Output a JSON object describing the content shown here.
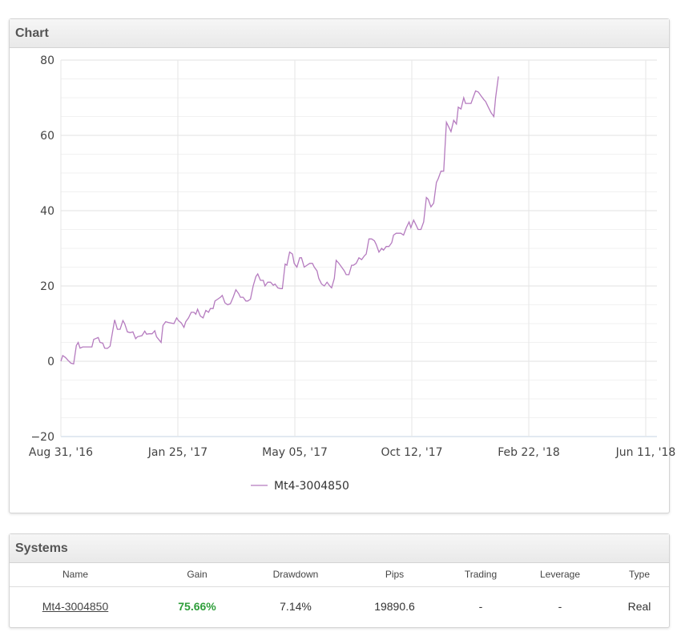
{
  "chart_panel": {
    "title": "Chart"
  },
  "chart_data": {
    "type": "line",
    "x_tick_labels": [
      "Aug 31, '16",
      "Jan 25, '17",
      "May 05, '17",
      "Oct 12, '17",
      "Feb 22, '18",
      "Jun 11, '18"
    ],
    "x_range": [
      "2016-08-31",
      "2018-06-16"
    ],
    "y_tick_labels": [
      "80",
      "60",
      "40",
      "20",
      "0",
      "−20"
    ],
    "ylim": [
      -20,
      80
    ],
    "grid": true,
    "legend_position": "bottom",
    "series": [
      {
        "name": "Mt4-3004850",
        "color": "#b57bbf",
        "points": [
          [
            "2016-08-31",
            0
          ],
          [
            "2016-09-02",
            1.5
          ],
          [
            "2016-09-05",
            1.0
          ],
          [
            "2016-09-08",
            0.2
          ],
          [
            "2016-09-11",
            -0.5
          ],
          [
            "2016-09-14",
            -0.7
          ],
          [
            "2016-09-17",
            4.2
          ],
          [
            "2016-09-19",
            5.0
          ],
          [
            "2016-09-21",
            3.5
          ],
          [
            "2016-09-24",
            3.8
          ],
          [
            "2016-09-30",
            3.8
          ],
          [
            "2016-10-04",
            3.8
          ],
          [
            "2016-10-06",
            5.8
          ],
          [
            "2016-10-11",
            6.3
          ],
          [
            "2016-10-13",
            5.0
          ],
          [
            "2016-10-16",
            4.8
          ],
          [
            "2016-10-18",
            3.5
          ],
          [
            "2016-10-21",
            3.4
          ],
          [
            "2016-10-24",
            4.0
          ],
          [
            "2016-10-29",
            11.0
          ],
          [
            "2016-11-01",
            8.5
          ],
          [
            "2016-11-04",
            8.5
          ],
          [
            "2016-11-07",
            10.8
          ],
          [
            "2016-11-09",
            10.0
          ],
          [
            "2016-11-12",
            7.8
          ],
          [
            "2016-11-15",
            7.6
          ],
          [
            "2016-11-18",
            7.8
          ],
          [
            "2016-11-21",
            6.0
          ],
          [
            "2016-11-23",
            6.5
          ],
          [
            "2016-11-28",
            6.8
          ],
          [
            "2016-12-01",
            8.0
          ],
          [
            "2016-12-03",
            7.2
          ],
          [
            "2016-12-06",
            7.3
          ],
          [
            "2016-12-09",
            7.3
          ],
          [
            "2016-12-12",
            8.1
          ],
          [
            "2016-12-14",
            6.5
          ],
          [
            "2016-12-19",
            5.0
          ],
          [
            "2016-12-21",
            9.5
          ],
          [
            "2016-12-24",
            10.5
          ],
          [
            "2016-12-27",
            10.3
          ],
          [
            "2017-01-02",
            10.0
          ],
          [
            "2017-01-05",
            11.5
          ],
          [
            "2017-01-07",
            10.8
          ],
          [
            "2017-01-10",
            10.2
          ],
          [
            "2017-01-13",
            9.0
          ],
          [
            "2017-01-15",
            10.5
          ],
          [
            "2017-01-18",
            11.5
          ],
          [
            "2017-01-21",
            13.0
          ],
          [
            "2017-01-24",
            13.0
          ],
          [
            "2017-01-26",
            12.5
          ],
          [
            "2017-01-28",
            13.8
          ],
          [
            "2017-01-31",
            12.0
          ],
          [
            "2017-02-03",
            11.5
          ],
          [
            "2017-02-06",
            13.5
          ],
          [
            "2017-02-09",
            13.0
          ],
          [
            "2017-02-11",
            14.0
          ],
          [
            "2017-02-14",
            14.0
          ],
          [
            "2017-02-16",
            16.0
          ],
          [
            "2017-02-19",
            16.5
          ],
          [
            "2017-02-22",
            17.0
          ],
          [
            "2017-02-24",
            17.5
          ],
          [
            "2017-02-27",
            15.5
          ],
          [
            "2017-03-02",
            15.0
          ],
          [
            "2017-03-05",
            15.3
          ],
          [
            "2017-03-08",
            17.0
          ],
          [
            "2017-03-11",
            19.0
          ],
          [
            "2017-03-14",
            18.0
          ],
          [
            "2017-03-16",
            17.0
          ],
          [
            "2017-03-19",
            17.0
          ],
          [
            "2017-03-22",
            16.0
          ],
          [
            "2017-03-24",
            16.0
          ],
          [
            "2017-03-27",
            16.5
          ],
          [
            "2017-03-30",
            20.0
          ],
          [
            "2017-04-02",
            22.5
          ],
          [
            "2017-04-04",
            23.2
          ],
          [
            "2017-04-07",
            21.5
          ],
          [
            "2017-04-10",
            21.5
          ],
          [
            "2017-04-12",
            20.0
          ],
          [
            "2017-04-15",
            21.0
          ],
          [
            "2017-04-18",
            21.0
          ],
          [
            "2017-04-21",
            20.2
          ],
          [
            "2017-04-23",
            20.5
          ],
          [
            "2017-04-26",
            19.5
          ],
          [
            "2017-04-29",
            19.3
          ],
          [
            "2017-05-01",
            19.3
          ],
          [
            "2017-05-04",
            25.8
          ],
          [
            "2017-05-06",
            25.5
          ],
          [
            "2017-05-09",
            29.0
          ],
          [
            "2017-05-12",
            28.5
          ],
          [
            "2017-05-14",
            26.0
          ],
          [
            "2017-05-17",
            25.0
          ],
          [
            "2017-05-20",
            27.5
          ],
          [
            "2017-05-22",
            27.5
          ],
          [
            "2017-05-25",
            25.0
          ],
          [
            "2017-05-28",
            25.5
          ],
          [
            "2017-05-31",
            26.0
          ],
          [
            "2017-06-03",
            26.0
          ],
          [
            "2017-06-05",
            25.0
          ],
          [
            "2017-06-08",
            24.0
          ],
          [
            "2017-06-10",
            22.0
          ],
          [
            "2017-06-13",
            20.5
          ],
          [
            "2017-06-16",
            20.0
          ],
          [
            "2017-06-19",
            21.0
          ],
          [
            "2017-06-22",
            20.0
          ],
          [
            "2017-06-24",
            19.5
          ],
          [
            "2017-06-27",
            22.0
          ],
          [
            "2017-06-29",
            26.8
          ],
          [
            "2017-07-02",
            26.0
          ],
          [
            "2017-07-05",
            25.0
          ],
          [
            "2017-07-08",
            24.0
          ],
          [
            "2017-07-10",
            23.0
          ],
          [
            "2017-07-13",
            23.0
          ],
          [
            "2017-07-16",
            25.5
          ],
          [
            "2017-07-18",
            25.5
          ],
          [
            "2017-07-21",
            26.0
          ],
          [
            "2017-07-24",
            27.5
          ],
          [
            "2017-07-27",
            27.0
          ],
          [
            "2017-07-30",
            28.0
          ],
          [
            "2017-08-01",
            28.5
          ],
          [
            "2017-08-04",
            32.5
          ],
          [
            "2017-08-07",
            32.5
          ],
          [
            "2017-08-10",
            32.0
          ],
          [
            "2017-08-12",
            31.0
          ],
          [
            "2017-08-15",
            29.0
          ],
          [
            "2017-08-18",
            30.0
          ],
          [
            "2017-08-20",
            29.5
          ],
          [
            "2017-08-23",
            30.5
          ],
          [
            "2017-08-26",
            30.5
          ],
          [
            "2017-08-29",
            31.5
          ],
          [
            "2017-08-31",
            33.5
          ],
          [
            "2017-09-03",
            34.0
          ],
          [
            "2017-09-06",
            34.0
          ],
          [
            "2017-09-08",
            34.0
          ],
          [
            "2017-09-11",
            33.5
          ],
          [
            "2017-09-14",
            35.5
          ],
          [
            "2017-09-17",
            37.0
          ],
          [
            "2017-09-19",
            35.5
          ],
          [
            "2017-09-22",
            37.5
          ],
          [
            "2017-09-25",
            36.0
          ],
          [
            "2017-09-27",
            35.0
          ],
          [
            "2017-09-30",
            35.0
          ],
          [
            "2017-10-03",
            37.0
          ],
          [
            "2017-10-06",
            43.5
          ],
          [
            "2017-10-08",
            43.0
          ],
          [
            "2017-10-11",
            41.0
          ],
          [
            "2017-10-14",
            42.0
          ],
          [
            "2017-10-17",
            47.5
          ],
          [
            "2017-10-19",
            48.5
          ],
          [
            "2017-10-22",
            50.5
          ],
          [
            "2017-10-25",
            50.5
          ],
          [
            "2017-10-28",
            63.5
          ],
          [
            "2017-10-30",
            62.5
          ],
          [
            "2017-11-02",
            61.0
          ],
          [
            "2017-11-05",
            64.0
          ],
          [
            "2017-11-08",
            63.0
          ],
          [
            "2017-11-10",
            67.5
          ],
          [
            "2017-11-13",
            67.0
          ],
          [
            "2017-11-16",
            70.0
          ],
          [
            "2017-11-18",
            68.5
          ],
          [
            "2017-11-21",
            68.5
          ],
          [
            "2017-11-24",
            68.5
          ],
          [
            "2017-11-27",
            70.5
          ],
          [
            "2017-11-29",
            71.8
          ],
          [
            "2017-12-02",
            71.5
          ],
          [
            "2017-12-05",
            70.5
          ],
          [
            "2017-12-08",
            69.5
          ],
          [
            "2017-12-10",
            69.0
          ],
          [
            "2017-12-13",
            67.5
          ],
          [
            "2017-12-16",
            66.0
          ],
          [
            "2017-12-19",
            65.0
          ],
          [
            "2017-12-21",
            70.0
          ],
          [
            "2017-12-24",
            75.66
          ]
        ]
      }
    ]
  },
  "systems_panel": {
    "title": "Systems",
    "columns": [
      "Name",
      "Gain",
      "Drawdown",
      "Pips",
      "Trading",
      "Leverage",
      "Type"
    ],
    "row": {
      "name": "Mt4-3004850",
      "gain": "75.66%",
      "gain_color": "#2e9e3a",
      "drawdown": "7.14%",
      "pips": "19890.6",
      "trading": "-",
      "leverage": "-",
      "type": "Real"
    }
  }
}
